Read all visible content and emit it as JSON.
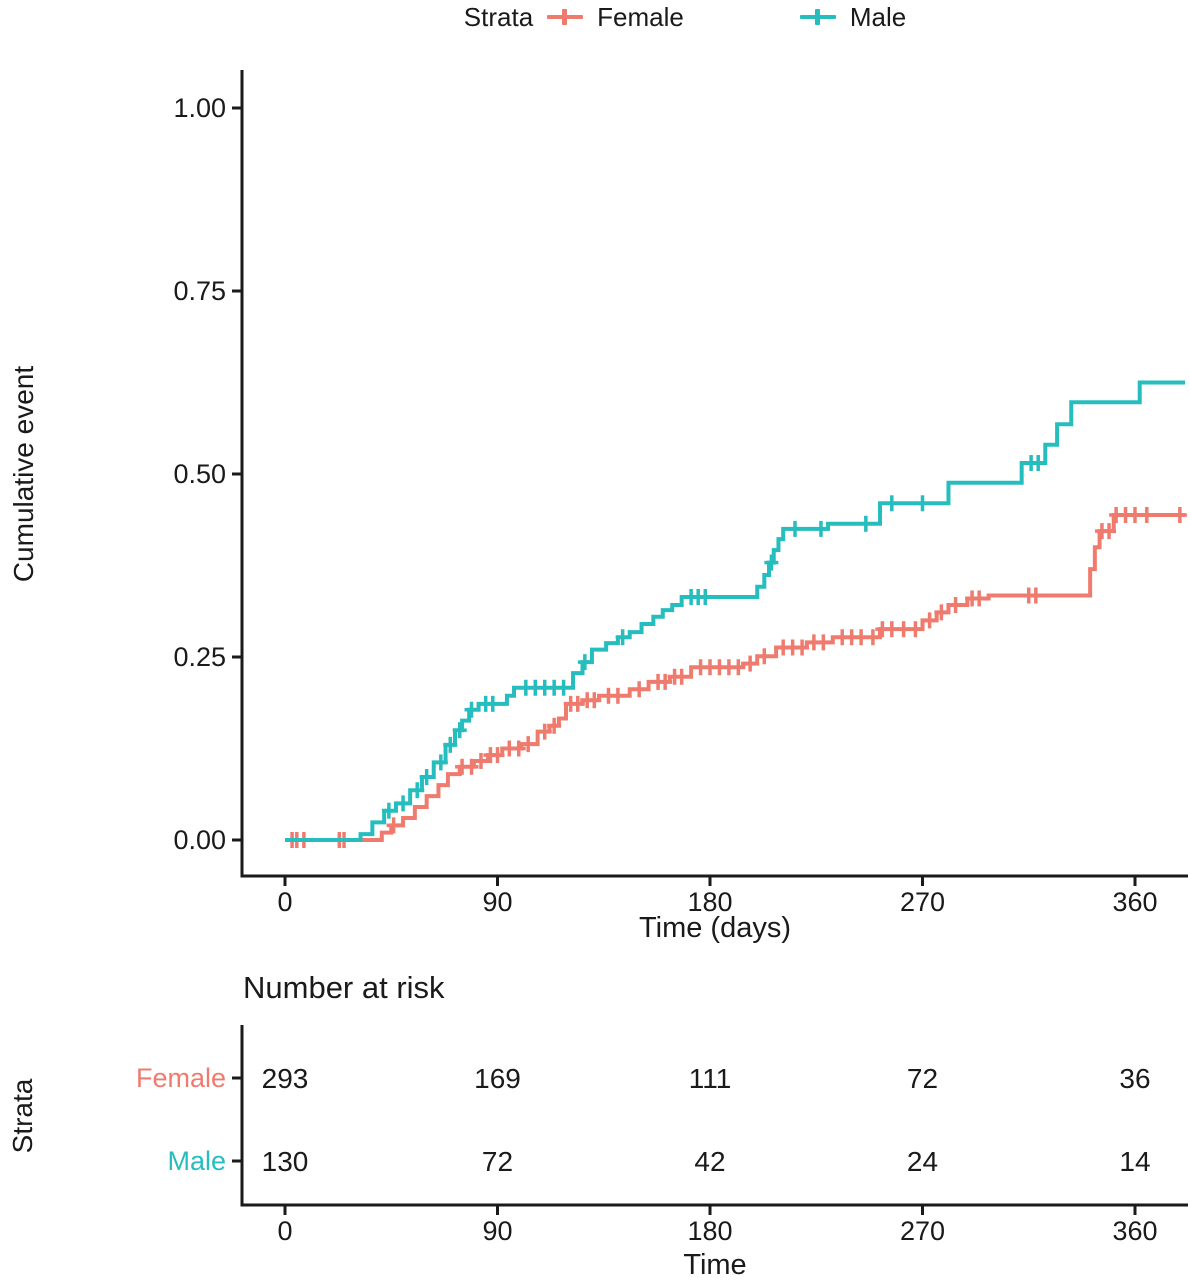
{
  "legend": {
    "title": "Strata",
    "items": [
      {
        "label": "Female",
        "color": "#EF7B6F"
      },
      {
        "label": "Male",
        "color": "#26BDBE"
      }
    ]
  },
  "chart_data": {
    "type": "line",
    "subtype": "kaplan-meier-cumulative-event-step",
    "title": "",
    "xlabel": "Time (days)",
    "ylabel": "Cumulative event",
    "xlim": [
      0,
      382
    ],
    "ylim": [
      0,
      1.0
    ],
    "xticks": [
      0,
      90,
      180,
      270,
      360
    ],
    "ytick_labels": [
      "0.00",
      "0.25",
      "0.50",
      "0.75",
      "1.00"
    ],
    "yticks": [
      0.0,
      0.25,
      0.5,
      0.75,
      1.0
    ],
    "grid": false,
    "legend_position": "top",
    "series": [
      {
        "name": "Female",
        "color": "#EF7B6F",
        "steps": [
          [
            0,
            0
          ],
          [
            41,
            0.01
          ],
          [
            45,
            0.02
          ],
          [
            50,
            0.03
          ],
          [
            55,
            0.045
          ],
          [
            60,
            0.06
          ],
          [
            65,
            0.075
          ],
          [
            69,
            0.09
          ],
          [
            74,
            0.1
          ],
          [
            80,
            0.108
          ],
          [
            86,
            0.116
          ],
          [
            92,
            0.125
          ],
          [
            100,
            0.131
          ],
          [
            107,
            0.148
          ],
          [
            112,
            0.156
          ],
          [
            116,
            0.166
          ],
          [
            119,
            0.186
          ],
          [
            126,
            0.191
          ],
          [
            133,
            0.197
          ],
          [
            146,
            0.206
          ],
          [
            154,
            0.216
          ],
          [
            163,
            0.223
          ],
          [
            172,
            0.236
          ],
          [
            194,
            0.241
          ],
          [
            200,
            0.251
          ],
          [
            208,
            0.263
          ],
          [
            221,
            0.27
          ],
          [
            232,
            0.277
          ],
          [
            252,
            0.288
          ],
          [
            270,
            0.3
          ],
          [
            276,
            0.311
          ],
          [
            281,
            0.321
          ],
          [
            289,
            0.33
          ],
          [
            298,
            0.334
          ],
          [
            341,
            0.37
          ],
          [
            343,
            0.4
          ],
          [
            345,
            0.422
          ],
          [
            351,
            0.444
          ]
        ],
        "censor_times": [
          3,
          5,
          8,
          23,
          25,
          46,
          75,
          79,
          83,
          87,
          90,
          95,
          99,
          103,
          110,
          114,
          121,
          124,
          128,
          131,
          137,
          141,
          150,
          158,
          161,
          165,
          168,
          176,
          180,
          184,
          188,
          192,
          197,
          203,
          211,
          215,
          219,
          224,
          228,
          236,
          240,
          244,
          249,
          253,
          257,
          262,
          267,
          273,
          278,
          284,
          291,
          294,
          315,
          318,
          346,
          349,
          352,
          356,
          360,
          365,
          379
        ]
      },
      {
        "name": "Male",
        "color": "#26BDBE",
        "steps": [
          [
            0,
            0
          ],
          [
            32,
            0.008
          ],
          [
            37,
            0.024
          ],
          [
            42,
            0.04
          ],
          [
            47,
            0.05
          ],
          [
            53,
            0.068
          ],
          [
            58,
            0.086
          ],
          [
            63,
            0.106
          ],
          [
            68,
            0.13
          ],
          [
            72,
            0.15
          ],
          [
            75,
            0.163
          ],
          [
            78,
            0.178
          ],
          [
            82,
            0.186
          ],
          [
            94,
            0.197
          ],
          [
            97,
            0.208
          ],
          [
            122,
            0.228
          ],
          [
            126,
            0.243
          ],
          [
            130,
            0.26
          ],
          [
            136,
            0.269
          ],
          [
            141,
            0.277
          ],
          [
            146,
            0.284
          ],
          [
            151,
            0.295
          ],
          [
            156,
            0.305
          ],
          [
            160,
            0.314
          ],
          [
            164,
            0.321
          ],
          [
            168,
            0.332
          ],
          [
            200,
            0.346
          ],
          [
            203,
            0.362
          ],
          [
            205,
            0.379
          ],
          [
            207,
            0.396
          ],
          [
            209,
            0.411
          ],
          [
            211,
            0.425
          ],
          [
            230,
            0.432
          ],
          [
            252,
            0.46
          ],
          [
            281,
            0.488
          ],
          [
            312,
            0.515
          ],
          [
            322,
            0.54
          ],
          [
            327,
            0.568
          ],
          [
            333,
            0.598
          ],
          [
            362,
            0.625
          ]
        ],
        "censor_times": [
          44,
          50,
          56,
          60,
          66,
          70,
          74,
          79,
          85,
          88,
          102,
          106,
          110,
          114,
          118,
          127,
          143,
          172,
          175,
          178,
          206,
          216,
          227,
          246,
          257,
          270,
          316,
          319
        ]
      }
    ]
  },
  "risk_table": {
    "title": "Number at risk",
    "ylabel": "Strata",
    "xlabel": "Time",
    "xticks": [
      0,
      90,
      180,
      270,
      360
    ],
    "rows": [
      {
        "label": "Female",
        "color": "#EF7B6F",
        "values": [
          "293",
          "169",
          "111",
          "72",
          "36"
        ]
      },
      {
        "label": "Male",
        "color": "#26BDBE",
        "values": [
          "130",
          "72",
          "42",
          "24",
          "14"
        ]
      }
    ]
  }
}
